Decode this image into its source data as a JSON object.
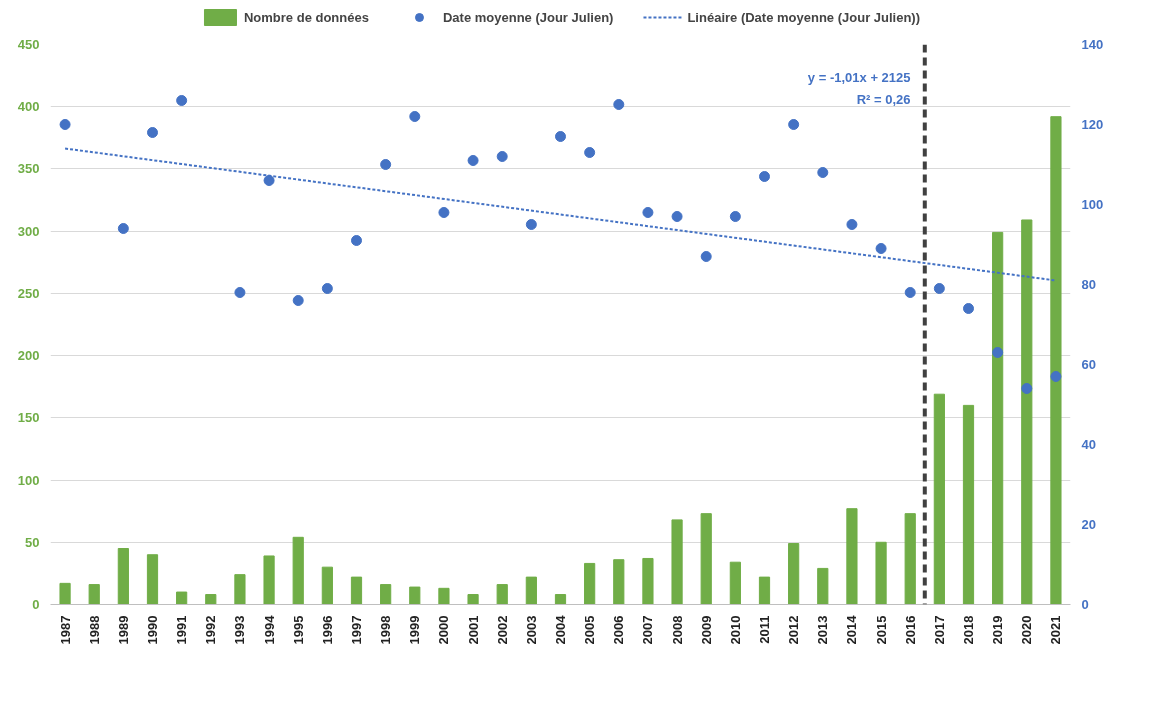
{
  "chart_data": {
    "type": "bar",
    "x": [
      1987,
      1988,
      1989,
      1990,
      1991,
      1992,
      1993,
      1994,
      1995,
      1996,
      1997,
      1998,
      1999,
      2000,
      2001,
      2002,
      2003,
      2004,
      2005,
      2006,
      2007,
      2008,
      2009,
      2010,
      2011,
      2012,
      2013,
      2014,
      2015,
      2016,
      2017,
      2018,
      2019,
      2020,
      2021
    ],
    "series": [
      {
        "name": "Nombre de données",
        "color": "#70ad47",
        "values": [
          17,
          16,
          45,
          40,
          10,
          8,
          24,
          39,
          54,
          30,
          22,
          16,
          14,
          13,
          8,
          16,
          22,
          8,
          33,
          36,
          37,
          68,
          73,
          34,
          22,
          49,
          29,
          77,
          50,
          73,
          169,
          160,
          299,
          309,
          392
        ]
      },
      {
        "name": "Date moyenne (Jour Julien)",
        "type": "scatter",
        "axis": "y2",
        "marker": "circle",
        "color": "#4472c4",
        "values": [
          120,
          null,
          94,
          118,
          126,
          null,
          78,
          106,
          76,
          79,
          91,
          110,
          122,
          98,
          111,
          112,
          95,
          117,
          113,
          125,
          98,
          97,
          87,
          97,
          107,
          120,
          108,
          95,
          89,
          78,
          79,
          74,
          63,
          54,
          57
        ]
      },
      {
        "name": "Linéaire (Date moyenne (Jour Julien))",
        "type": "line",
        "axis": "y2",
        "line_style": "dotted",
        "color": "#4472c4",
        "x": [
          1987,
          2021
        ],
        "values": [
          114,
          81
        ]
      }
    ],
    "xlim": [
      1986.5,
      2021.5
    ],
    "xticks": [
      1987,
      1988,
      1989,
      1990,
      1991,
      1992,
      1993,
      1994,
      1995,
      1996,
      1997,
      1998,
      1999,
      2000,
      2001,
      2002,
      2003,
      2004,
      2005,
      2006,
      2007,
      2008,
      2009,
      2010,
      2011,
      2012,
      2013,
      2014,
      2015,
      2016,
      2017,
      2018,
      2019,
      2020,
      2021
    ],
    "ylim": [
      0,
      450
    ],
    "yticks": [
      0,
      50,
      100,
      150,
      200,
      250,
      300,
      350,
      400,
      450
    ],
    "y2lim": [
      0,
      140
    ],
    "y2ticks": [
      0,
      20,
      40,
      60,
      80,
      100,
      120,
      140
    ],
    "ref_lines": [
      {
        "axis": "x",
        "value": 2016.5,
        "color": "#404040",
        "line_style": "dashed"
      }
    ],
    "annotations": [
      "y = -1,01x + 2125",
      "R² = 0,26"
    ],
    "grid": "y",
    "legend": "top"
  }
}
